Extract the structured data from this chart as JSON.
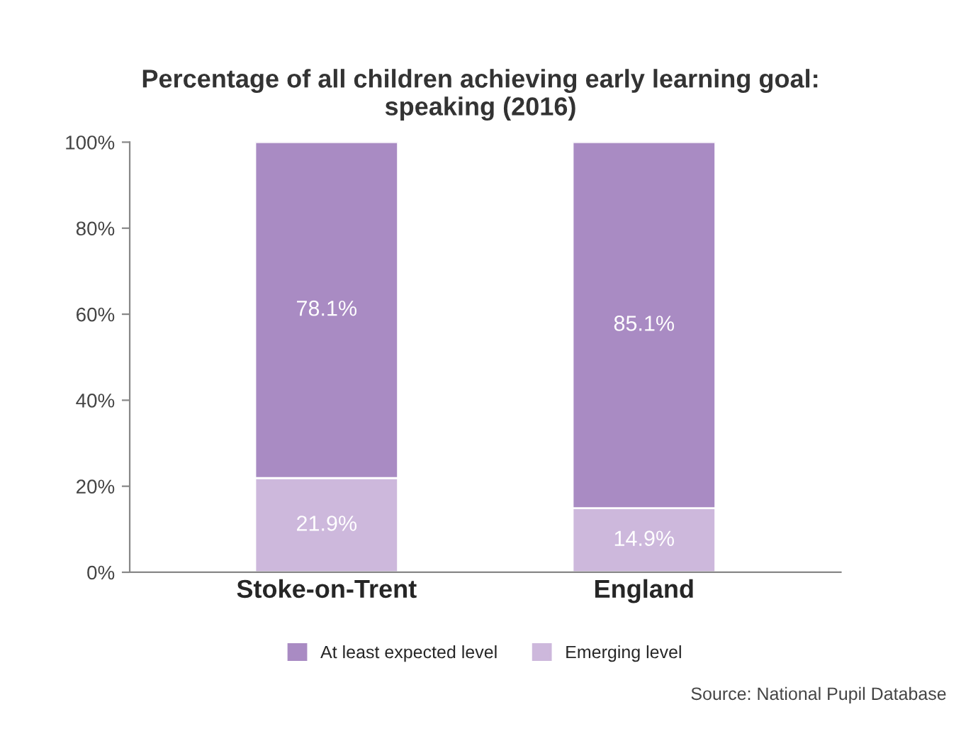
{
  "chart_data": {
    "type": "bar",
    "title": "Percentage of all children achieving early learning goal:\nspeaking (2016)",
    "categories": [
      "Stoke-on-Trent",
      "England"
    ],
    "stacked": true,
    "series": [
      {
        "name": "Emerging level",
        "color": "#cdb8dc",
        "values": [
          21.9,
          14.9
        ],
        "value_labels": [
          "21.9%",
          "14.9%"
        ]
      },
      {
        "name": "At least expected level",
        "color": "#a98bc3",
        "values": [
          78.1,
          85.1
        ],
        "value_labels": [
          "78.1%",
          "85.1%"
        ]
      }
    ],
    "ylim": [
      0,
      100
    ],
    "yticks": [
      {
        "value": 0,
        "label": "0%"
      },
      {
        "value": 20,
        "label": "20%"
      },
      {
        "value": 40,
        "label": "40%"
      },
      {
        "value": 60,
        "label": "60%"
      },
      {
        "value": 80,
        "label": "80%"
      },
      {
        "value": 100,
        "label": "100%"
      }
    ],
    "grid": false,
    "legend": "bottom",
    "annotations": [
      "Source: National Pupil Database"
    ]
  }
}
